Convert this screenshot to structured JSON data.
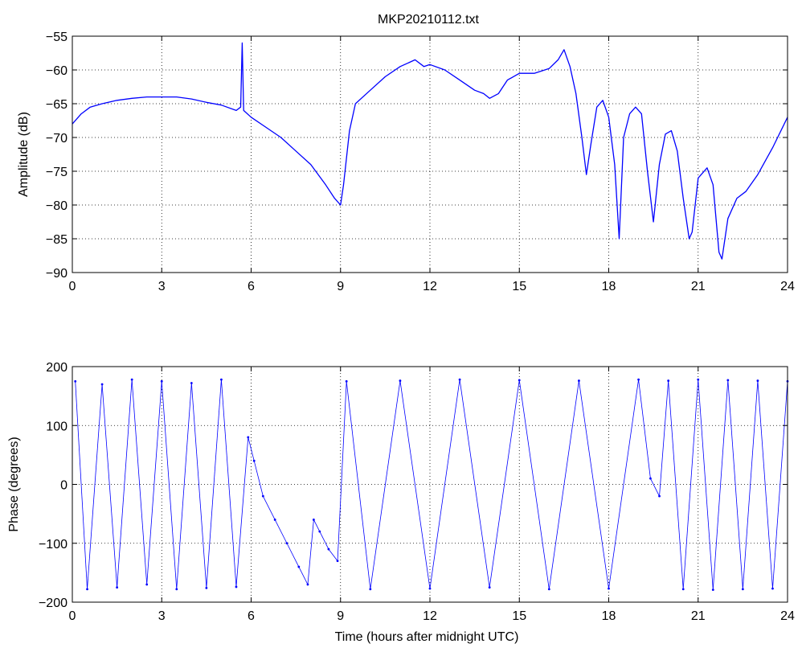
{
  "figure": {
    "title": "MKP20210112.txt",
    "line_color": "#0000ff"
  },
  "chart_data": [
    {
      "type": "line",
      "title": "MKP20210112.txt",
      "xlabel": "",
      "ylabel": "Amplitude (dB)",
      "xlim": [
        0,
        24
      ],
      "ylim": [
        -90,
        -55
      ],
      "xticks": [
        0,
        3,
        6,
        9,
        12,
        15,
        18,
        21,
        24
      ],
      "yticks": [
        -90,
        -85,
        -80,
        -75,
        -70,
        -65,
        -60,
        -55
      ],
      "grid": true,
      "series": [
        {
          "x": [
            0,
            0.3,
            0.6,
            1,
            1.5,
            2,
            2.5,
            3,
            3.5,
            4,
            4.5,
            5,
            5.5,
            5.65,
            5.7,
            5.75,
            6,
            6.5,
            7,
            7.5,
            8,
            8.5,
            8.8,
            9.0,
            9.1,
            9.3,
            9.5,
            10,
            10.5,
            11,
            11.5,
            11.8,
            12,
            12.5,
            13,
            13.5,
            13.8,
            14,
            14.3,
            14.6,
            15,
            15.5,
            16,
            16.3,
            16.5,
            16.7,
            16.9,
            17.1,
            17.25,
            17.4,
            17.6,
            17.8,
            18.0,
            18.2,
            18.35,
            18.5,
            18.7,
            18.9,
            19.1,
            19.3,
            19.5,
            19.7,
            19.9,
            20.1,
            20.3,
            20.5,
            20.7,
            20.8,
            21.0,
            21.3,
            21.5,
            21.7,
            21.8,
            22.0,
            22.3,
            22.6,
            23.0,
            23.5,
            24
          ],
          "y": [
            -68,
            -66.5,
            -65.5,
            -65,
            -64.5,
            -64.2,
            -64,
            -64,
            -64,
            -64.3,
            -64.8,
            -65.2,
            -66,
            -65.5,
            -56,
            -66,
            -67,
            -68.5,
            -70,
            -72,
            -74,
            -77,
            -79,
            -80,
            -77,
            -69,
            -65,
            -63,
            -61,
            -59.5,
            -58.5,
            -59.5,
            -59.2,
            -60,
            -61.5,
            -63,
            -63.5,
            -64.2,
            -63.5,
            -61.5,
            -60.5,
            -60.5,
            -59.8,
            -58.5,
            -57,
            -59.5,
            -63.5,
            -70,
            -75.5,
            -71,
            -65.5,
            -64.5,
            -67,
            -74,
            -85,
            -70,
            -66.5,
            -65.5,
            -66.5,
            -75,
            -82.5,
            -74,
            -69.5,
            -69,
            -72,
            -79,
            -85,
            -84,
            -76,
            -74.5,
            -77,
            -87,
            -88,
            -82,
            -79,
            -78,
            -75.5,
            -71.5,
            -67
          ]
        }
      ]
    },
    {
      "type": "scatter",
      "title": "",
      "xlabel": "Time (hours after midnight UTC)",
      "ylabel": "Phase (degrees)",
      "xlim": [
        0,
        24
      ],
      "ylim": [
        -200,
        200
      ],
      "xticks": [
        0,
        3,
        6,
        9,
        12,
        15,
        18,
        21,
        24
      ],
      "yticks": [
        -200,
        -100,
        0,
        100,
        200
      ],
      "grid": true,
      "series": [
        {
          "x": [
            0.1,
            0.5,
            1,
            1.5,
            2,
            2.5,
            3,
            3.5,
            4,
            4.5,
            5,
            5.5,
            5.9,
            6.1,
            6.4,
            6.8,
            7.2,
            7.6,
            7.9,
            8.1,
            8.3,
            8.6,
            8.9,
            9.2,
            10,
            11,
            12,
            13,
            14,
            15,
            16,
            17,
            18,
            19,
            19.4,
            19.7,
            20,
            20.5,
            21,
            21.5,
            22,
            22.5,
            23,
            23.5,
            24
          ],
          "y": [
            175,
            -178,
            170,
            -175,
            178,
            -170,
            175,
            -178,
            172,
            -176,
            178,
            -174,
            80,
            40,
            -20,
            -60,
            -100,
            -140,
            -170,
            -60,
            -80,
            -110,
            -130,
            175,
            -178,
            176,
            -177,
            178,
            -175,
            177,
            -178,
            176,
            -177,
            178,
            10,
            -20,
            176,
            -178,
            178,
            -179,
            177,
            -178,
            176,
            -177,
            175
          ]
        }
      ]
    }
  ]
}
